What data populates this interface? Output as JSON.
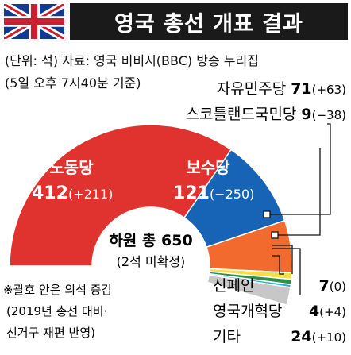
{
  "title": "영국 총선 개표 결과",
  "source": "(단위: 석) 자료: 영국 비비시(BBC) 방송 누리집",
  "as_of": "(5일 오후 7시40분 기준)",
  "note": [
    "※괄호 안은 의석 증감",
    "(2019년 총선 대비·",
    "선거구 재편 반영)"
  ],
  "chart_data": {
    "type": "pie",
    "title": "영국 총선 개표 결과",
    "unit": "석",
    "total_label": "하원 총 650",
    "undecided_label": "(2석 미확정)",
    "slices": [
      {
        "name": "노동당",
        "value": 412,
        "change": "(+211)",
        "color": "#e0322e"
      },
      {
        "name": "보수당",
        "value": 121,
        "change": "(−250)",
        "color": "#1763b5"
      },
      {
        "name": "자유민주당",
        "value": 71,
        "change": "(+63)",
        "color": "#f26a2e"
      },
      {
        "name": "스코틀랜드국민당",
        "value": 9,
        "change": "(−38)",
        "color": "#f1e04a"
      },
      {
        "name": "신페인",
        "value": 7,
        "change": "(0)",
        "color": "#2f8f4e"
      },
      {
        "name": "영국개혁당",
        "value": 4,
        "change": "(+4)",
        "color": "#2aaed0"
      },
      {
        "name": "기타",
        "value": 24,
        "change": "(+10)",
        "color": "#c7c7c7"
      }
    ]
  }
}
